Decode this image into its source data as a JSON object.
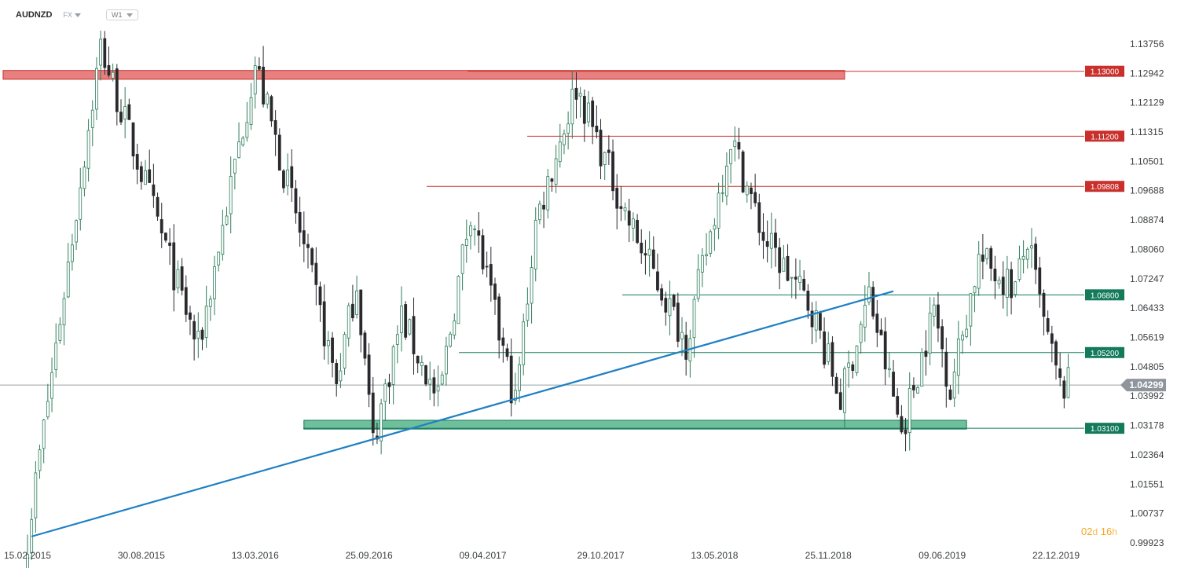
{
  "header": {
    "symbol": "AUDNZD",
    "market": "FX",
    "timeframe": "W1"
  },
  "countdown": {
    "days": "02",
    "days_unit": "d",
    "hours": "16",
    "hours_unit": "h"
  },
  "colors": {
    "bull": "#2e7d5b",
    "bear": "#2a2a2e",
    "resistance": "#c9302c",
    "resistance_zone": "#e88080",
    "support": "#137a5a",
    "support_zone": "#6fbf9c",
    "trendline": "#1f7fc4",
    "current_price": "#9aa0a6"
  },
  "chart_data": {
    "type": "candlestick",
    "instrument": "AUDNZD",
    "timeframe": "W1",
    "x_tick_labels": [
      "15.02.2015",
      "30.08.2015",
      "13.03.2016",
      "25.09.2016",
      "09.04.2017",
      "29.10.2017",
      "13.05.2018",
      "25.11.2018",
      "09.06.2019",
      "22.12.2019"
    ],
    "y_tick_labels": [
      "1.13756",
      "1.12942",
      "1.12129",
      "1.11315",
      "1.10501",
      "1.09688",
      "1.08874",
      "1.08060",
      "1.07247",
      "1.06433",
      "1.05619",
      "1.04805",
      "1.03992",
      "1.03178",
      "1.02364",
      "1.01551",
      "1.00737",
      "0.99923"
    ],
    "ylim": [
      0.9992,
      1.1425
    ],
    "current_price": {
      "label": "1.04299",
      "value": 1.04299
    },
    "horizontal_levels": [
      {
        "label": "1.13000",
        "value": 1.13,
        "kind": "resistance"
      },
      {
        "label": "1.11200",
        "value": 1.112,
        "kind": "resistance"
      },
      {
        "label": "1.09808",
        "value": 1.09808,
        "kind": "resistance"
      },
      {
        "label": "1.06800",
        "value": 1.068,
        "kind": "support"
      },
      {
        "label": "1.05200",
        "value": 1.052,
        "kind": "support"
      },
      {
        "label": "1.03100",
        "value": 1.031,
        "kind": "support"
      }
    ],
    "zones": [
      {
        "kind": "resistance",
        "from": 1.128,
        "to": 1.13,
        "start_date": "2015-01-04",
        "end_date": "2018-12-23"
      },
      {
        "kind": "support",
        "from": 1.031,
        "to": 1.033,
        "start_date": "2016-06-05",
        "end_date": "2019-07-21"
      }
    ],
    "trendline": {
      "start": {
        "date": "2015-02-22",
        "price": 1.001
      },
      "end": {
        "date": "2019-03-17",
        "price": 1.069
      }
    },
    "anchors": [
      {
        "date": "2015-02-15",
        "price": 1.001
      },
      {
        "date": "2015-06-21",
        "price": 1.137
      },
      {
        "date": "2015-12-06",
        "price": 1.053
      },
      {
        "date": "2016-03-13",
        "price": 1.132
      },
      {
        "date": "2016-05-22",
        "price": 1.09
      },
      {
        "date": "2016-07-31",
        "price": 1.044
      },
      {
        "date": "2016-09-04",
        "price": 1.072
      },
      {
        "date": "2016-10-02",
        "price": 1.027
      },
      {
        "date": "2016-11-20",
        "price": 1.062
      },
      {
        "date": "2017-01-22",
        "price": 1.038
      },
      {
        "date": "2017-03-19",
        "price": 1.092
      },
      {
        "date": "2017-04-30",
        "price": 1.062
      },
      {
        "date": "2017-06-04",
        "price": 1.038
      },
      {
        "date": "2017-07-09",
        "price": 1.088
      },
      {
        "date": "2017-09-17",
        "price": 1.126
      },
      {
        "date": "2017-12-17",
        "price": 1.088
      },
      {
        "date": "2018-03-25",
        "price": 1.055
      },
      {
        "date": "2018-05-06",
        "price": 1.085
      },
      {
        "date": "2018-06-10",
        "price": 1.112
      },
      {
        "date": "2018-08-05",
        "price": 1.084
      },
      {
        "date": "2018-10-28",
        "price": 1.064
      },
      {
        "date": "2018-12-16",
        "price": 1.039
      },
      {
        "date": "2019-02-03",
        "price": 1.068
      },
      {
        "date": "2019-03-31",
        "price": 1.03
      },
      {
        "date": "2019-05-26",
        "price": 1.064
      },
      {
        "date": "2019-06-23",
        "price": 1.042
      },
      {
        "date": "2019-08-11",
        "price": 1.078
      },
      {
        "date": "2019-10-13",
        "price": 1.07
      },
      {
        "date": "2019-11-03",
        "price": 1.083
      },
      {
        "date": "2019-12-01",
        "price": 1.06
      },
      {
        "date": "2019-12-29",
        "price": 1.042
      },
      {
        "date": "2020-01-12",
        "price": 1.043
      }
    ],
    "grid": false,
    "legend": "none"
  }
}
